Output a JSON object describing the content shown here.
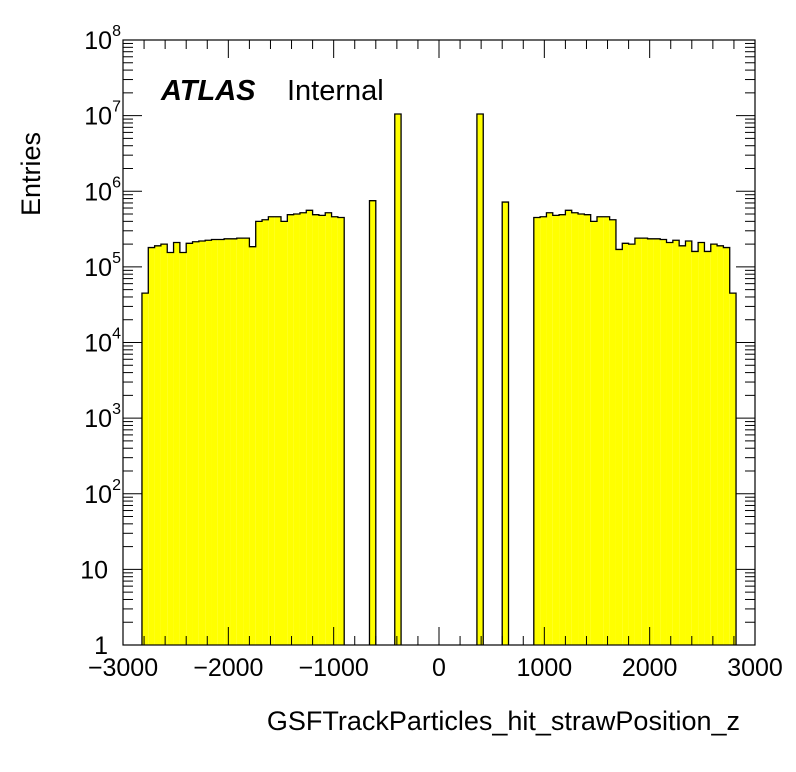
{
  "chart_data": {
    "type": "histogram",
    "title": "",
    "xlabel": "GSFTrackParticles_hit_strawPosition_z",
    "ylabel": "Entries",
    "xlim": [
      -3000,
      3000
    ],
    "ylim": [
      1,
      100000000
    ],
    "yscale": "log",
    "grid": false,
    "fill_color": "#ffff00",
    "line_color": "#000000",
    "label": {
      "experiment": "ATLAS",
      "status": "Internal"
    },
    "x_ticks": [
      {
        "value": -3000,
        "label": "−3000"
      },
      {
        "value": -2000,
        "label": "−2000"
      },
      {
        "value": -1000,
        "label": "−1000"
      },
      {
        "value": 0,
        "label": "0"
      },
      {
        "value": 1000,
        "label": "1000"
      },
      {
        "value": 2000,
        "label": "2000"
      },
      {
        "value": 3000,
        "label": "3000"
      }
    ],
    "y_ticks": [
      {
        "value": 1,
        "base": "1",
        "exp": ""
      },
      {
        "value": 10,
        "base": "10",
        "exp": ""
      },
      {
        "value": 100,
        "base": "10",
        "exp": "2"
      },
      {
        "value": 1000,
        "base": "10",
        "exp": "3"
      },
      {
        "value": 10000,
        "base": "10",
        "exp": "4"
      },
      {
        "value": 100000,
        "base": "10",
        "exp": "5"
      },
      {
        "value": 1000000,
        "base": "10",
        "exp": "6"
      },
      {
        "value": 10000000,
        "base": "10",
        "exp": "7"
      },
      {
        "value": 100000000,
        "base": "10",
        "exp": "8"
      }
    ],
    "bin_width": 60,
    "bins": [
      {
        "x": -2820,
        "y": 45000
      },
      {
        "x": -2760,
        "y": 180000
      },
      {
        "x": -2700,
        "y": 190000
      },
      {
        "x": -2640,
        "y": 200000
      },
      {
        "x": -2580,
        "y": 155000
      },
      {
        "x": -2520,
        "y": 210000
      },
      {
        "x": -2460,
        "y": 155000
      },
      {
        "x": -2400,
        "y": 205000
      },
      {
        "x": -2340,
        "y": 215000
      },
      {
        "x": -2280,
        "y": 220000
      },
      {
        "x": -2220,
        "y": 225000
      },
      {
        "x": -2160,
        "y": 230000
      },
      {
        "x": -2100,
        "y": 230000
      },
      {
        "x": -2040,
        "y": 235000
      },
      {
        "x": -1980,
        "y": 235000
      },
      {
        "x": -1920,
        "y": 240000
      },
      {
        "x": -1860,
        "y": 240000
      },
      {
        "x": -1800,
        "y": 185000
      },
      {
        "x": -1740,
        "y": 400000
      },
      {
        "x": -1680,
        "y": 420000
      },
      {
        "x": -1620,
        "y": 460000
      },
      {
        "x": -1560,
        "y": 460000
      },
      {
        "x": -1500,
        "y": 400000
      },
      {
        "x": -1440,
        "y": 490000
      },
      {
        "x": -1380,
        "y": 500000
      },
      {
        "x": -1320,
        "y": 520000
      },
      {
        "x": -1260,
        "y": 560000
      },
      {
        "x": -1200,
        "y": 490000
      },
      {
        "x": -1140,
        "y": 480000
      },
      {
        "x": -1080,
        "y": 520000
      },
      {
        "x": -1020,
        "y": 460000
      },
      {
        "x": -960,
        "y": 450000
      },
      {
        "x": -660,
        "y": 750000
      },
      {
        "x": -420,
        "y": 10500000
      },
      {
        "x": 360,
        "y": 10500000
      },
      {
        "x": 600,
        "y": 720000
      },
      {
        "x": 900,
        "y": 450000
      },
      {
        "x": 960,
        "y": 460000
      },
      {
        "x": 1020,
        "y": 520000
      },
      {
        "x": 1080,
        "y": 480000
      },
      {
        "x": 1140,
        "y": 490000
      },
      {
        "x": 1200,
        "y": 560000
      },
      {
        "x": 1260,
        "y": 520000
      },
      {
        "x": 1320,
        "y": 500000
      },
      {
        "x": 1380,
        "y": 490000
      },
      {
        "x": 1440,
        "y": 400000
      },
      {
        "x": 1500,
        "y": 460000
      },
      {
        "x": 1560,
        "y": 460000
      },
      {
        "x": 1620,
        "y": 420000
      },
      {
        "x": 1680,
        "y": 170000
      },
      {
        "x": 1740,
        "y": 205000
      },
      {
        "x": 1800,
        "y": 200000
      },
      {
        "x": 1860,
        "y": 240000
      },
      {
        "x": 1920,
        "y": 240000
      },
      {
        "x": 1980,
        "y": 235000
      },
      {
        "x": 2040,
        "y": 235000
      },
      {
        "x": 2100,
        "y": 230000
      },
      {
        "x": 2160,
        "y": 210000
      },
      {
        "x": 2220,
        "y": 225000
      },
      {
        "x": 2280,
        "y": 190000
      },
      {
        "x": 2340,
        "y": 220000
      },
      {
        "x": 2400,
        "y": 160000
      },
      {
        "x": 2460,
        "y": 210000
      },
      {
        "x": 2520,
        "y": 160000
      },
      {
        "x": 2580,
        "y": 200000
      },
      {
        "x": 2640,
        "y": 190000
      },
      {
        "x": 2700,
        "y": 180000
      },
      {
        "x": 2760,
        "y": 45000
      }
    ]
  }
}
